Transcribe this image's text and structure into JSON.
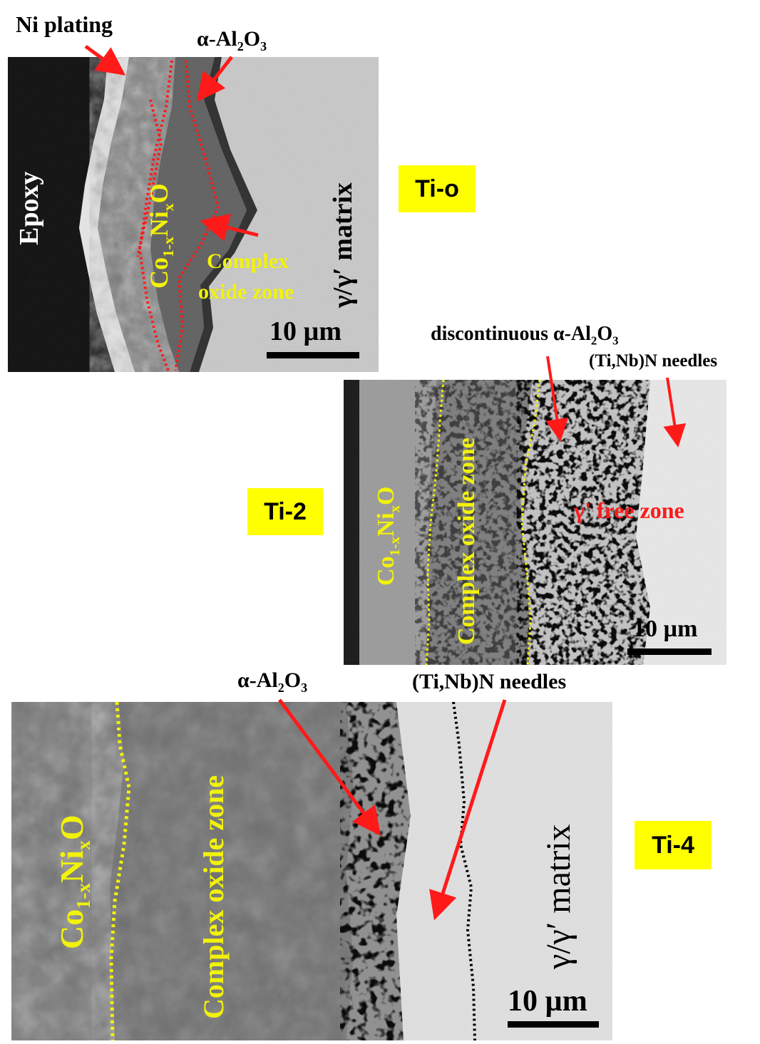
{
  "panels": [
    {
      "id": "ti0",
      "tag": "Ti-o",
      "labels": {
        "ni_plating": "Ni plating",
        "alumina": "α-Al",
        "alumina_sub1": "2",
        "alumina_o": "O",
        "alumina_sub2": "3",
        "epoxy": "Epoxy",
        "cooxide_pre": "Co",
        "cooxide_sub1": "1-x",
        "cooxide_mid": "Ni",
        "cooxide_sub2": "x",
        "cooxide_post": "O",
        "complex_line1": "Complex",
        "complex_line2": "oxide zone",
        "matrix": "γ/γ′ matrix",
        "scale": "10 µm"
      }
    },
    {
      "id": "ti2",
      "tag": "Ti-2",
      "labels": {
        "discontinuous": "discontinuous α-Al",
        "disc_sub1": "2",
        "disc_o": "O",
        "disc_sub2": "3",
        "needles": "(Ti,Nb)N needles",
        "cooxide_pre": "Co",
        "cooxide_sub1": "1-x",
        "cooxide_mid": "Ni",
        "cooxide_sub2": "x",
        "cooxide_post": "O",
        "complex": "Complex oxide zone",
        "free_zone": "γ' free zone",
        "scale": "10 µm"
      }
    },
    {
      "id": "ti4",
      "tag": "Ti-4",
      "labels": {
        "alumina": "α-Al",
        "alumina_sub1": "2",
        "alumina_o": "O",
        "alumina_sub2": "3",
        "needles": "(Ti,Nb)N needles",
        "cooxide_pre": "Co",
        "cooxide_sub1": "1-x",
        "cooxide_mid": "Ni",
        "cooxide_sub2": "x",
        "cooxide_post": "O",
        "complex": "Complex oxide zone",
        "matrix": "γ/γ′ matrix",
        "scale": "10 µm"
      }
    }
  ],
  "colors": {
    "arrow": "#ff1a1a",
    "tag_bg": "#ffff00",
    "label_yellow": "#f2f20a"
  }
}
